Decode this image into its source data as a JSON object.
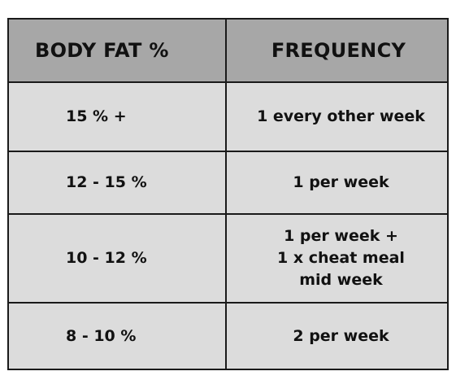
{
  "table": {
    "headers": [
      "BODY FAT %",
      "FREQUENCY"
    ],
    "rows": [
      {
        "body_fat": "15 % +",
        "frequency": "1 every other week"
      },
      {
        "body_fat": "12 - 15 %",
        "frequency": "1 per week"
      },
      {
        "body_fat": "10 - 12 %",
        "frequency": "1 per week +\n1 x cheat meal\nmid week"
      },
      {
        "body_fat": "8 - 10 %",
        "frequency": "2 per week"
      }
    ]
  },
  "colors": {
    "header_bg": "#a7a7a7",
    "cell_bg": "#dcdcdc",
    "border": "#1a1a1a",
    "text": "#111111"
  }
}
